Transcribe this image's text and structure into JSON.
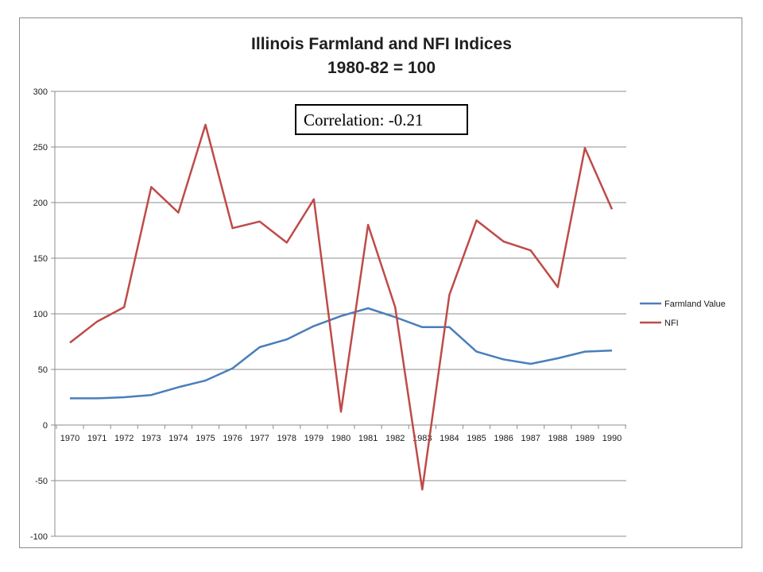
{
  "chart_data": {
    "type": "line",
    "title": "Illinois Farmland and NFI Indices",
    "subtitle": "1980-82 = 100",
    "xlabel": "",
    "ylabel": "",
    "x": [
      "1970",
      "1971",
      "1972",
      "1973",
      "1974",
      "1975",
      "1976",
      "1977",
      "1978",
      "1979",
      "1980",
      "1981",
      "1982",
      "1983",
      "1984",
      "1985",
      "1986",
      "1987",
      "1988",
      "1989",
      "1990"
    ],
    "series": [
      {
        "name": "Farmland Value",
        "color": "#4a7ebb",
        "values": [
          24,
          24,
          25,
          27,
          34,
          40,
          51,
          70,
          77,
          89,
          98,
          105,
          97,
          88,
          88,
          66,
          59,
          55,
          60,
          66,
          67
        ]
      },
      {
        "name": "NFI",
        "color": "#be4b48",
        "values": [
          74,
          93,
          106,
          214,
          191,
          270,
          177,
          183,
          164,
          203,
          12,
          180,
          106,
          -58,
          117,
          184,
          165,
          157,
          124,
          249,
          194
        ]
      }
    ],
    "ylim": [
      -100,
      300
    ],
    "yticks": [
      "300",
      "250",
      "200",
      "150",
      "100",
      "50",
      "0",
      "-50",
      "-100"
    ],
    "grid": true,
    "legend_position": "right",
    "annotation": "Correlation: -0.21"
  }
}
